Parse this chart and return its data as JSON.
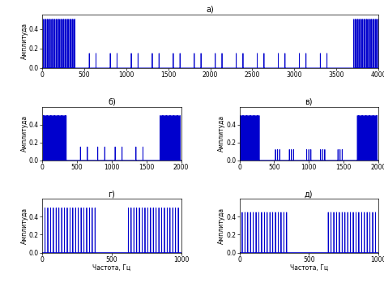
{
  "title_a": "а)",
  "title_b": "б)",
  "title_v": "в)",
  "title_g": "г)",
  "title_d": "д)",
  "ylabel": "Амплитуда",
  "xlabel": "Частота, Гц",
  "line_color": "#0000CD",
  "line_width": 0.6,
  "plot_a": {
    "xlim": [
      0,
      4000
    ],
    "ylim": [
      0,
      0.55
    ],
    "yticks": [
      0,
      0.2,
      0.4
    ],
    "xticks": [
      0,
      500,
      1000,
      1500,
      2000,
      2500,
      3000,
      3500,
      4000
    ]
  },
  "plot_b": {
    "xlim": [
      0,
      2000
    ],
    "ylim": [
      0,
      0.6
    ],
    "yticks": [
      0,
      0.2,
      0.4
    ],
    "xticks": [
      0,
      500,
      1000,
      1500,
      2000
    ]
  },
  "plot_v": {
    "xlim": [
      0,
      2000
    ],
    "ylim": [
      0,
      0.6
    ],
    "yticks": [
      0,
      0.2,
      0.4
    ],
    "xticks": [
      0,
      500,
      1000,
      1500,
      2000
    ]
  },
  "plot_g": {
    "xlim": [
      0,
      1000
    ],
    "ylim": [
      0,
      0.6
    ],
    "yticks": [
      0,
      0.2,
      0.4
    ],
    "xticks": [
      0,
      500,
      1000
    ]
  },
  "plot_d": {
    "xlim": [
      0,
      1000
    ],
    "ylim": [
      0,
      0.6
    ],
    "yticks": [
      0,
      0.2,
      0.4
    ],
    "xticks": [
      0,
      500,
      1000
    ]
  }
}
